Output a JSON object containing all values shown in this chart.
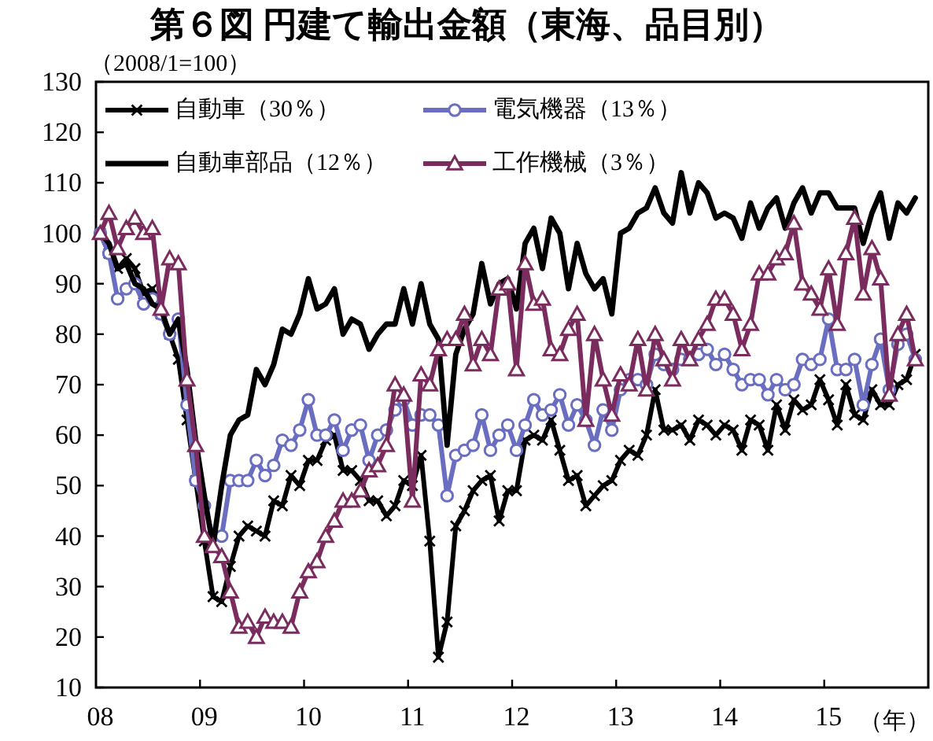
{
  "chart_data": {
    "type": "line",
    "title": "第６図 円建て輸出金額（東海、品目別）",
    "ylabel": "（2008/1=100）",
    "xlabel": "（年）",
    "categories": [
      "08",
      null,
      null,
      null,
      null,
      null,
      null,
      null,
      null,
      null,
      null,
      null,
      "09",
      null,
      null,
      null,
      null,
      null,
      null,
      null,
      null,
      null,
      null,
      null,
      "10",
      null,
      null,
      null,
      null,
      null,
      null,
      null,
      null,
      null,
      null,
      null,
      "11",
      null,
      null,
      null,
      null,
      null,
      null,
      null,
      null,
      null,
      null,
      null,
      "12",
      null,
      null,
      null,
      null,
      null,
      null,
      null,
      null,
      null,
      null,
      null,
      "13",
      null,
      null,
      null,
      null,
      null,
      null,
      null,
      null,
      null,
      null,
      null,
      "14",
      null,
      null,
      null,
      null,
      null,
      null,
      null,
      null,
      null,
      null,
      null,
      "15",
      null,
      null,
      null,
      null,
      null,
      null,
      null,
      null,
      null,
      null,
      null
    ],
    "series": [
      {
        "name": "自動車（30％）",
        "color": "#000000",
        "marker": "cross",
        "values": [
          100,
          96,
          93,
          95,
          93,
          88,
          89,
          84,
          80,
          75,
          63,
          51,
          39,
          28,
          27,
          34,
          40,
          42,
          41,
          40,
          47,
          46,
          52,
          50,
          55,
          55,
          59,
          60,
          53,
          53,
          51,
          47,
          47,
          44,
          46,
          51,
          50,
          56,
          39,
          16,
          23,
          42,
          45,
          49,
          51,
          52,
          43,
          49,
          49,
          59,
          60,
          59,
          63,
          57,
          51,
          52,
          46,
          48,
          50,
          51,
          55,
          57,
          56,
          60,
          69,
          61,
          61,
          62,
          59,
          63,
          62,
          60,
          62,
          61,
          57,
          63,
          62,
          57,
          66,
          61,
          67,
          65,
          66,
          71,
          67,
          62,
          70,
          64,
          63,
          69,
          66,
          66,
          70,
          71,
          76,
          null
        ]
      },
      {
        "name": "電気機器（13％）",
        "color": "#6a6ec0",
        "marker": "circle",
        "values": [
          100,
          96,
          87,
          89,
          90,
          86,
          87,
          84,
          80,
          83,
          66,
          51,
          46,
          40,
          40,
          51,
          51,
          51,
          55,
          52,
          54,
          59,
          58,
          61,
          67,
          60,
          60,
          63,
          57,
          61,
          62,
          55,
          60,
          61,
          65,
          67,
          62,
          64,
          64,
          62,
          48,
          56,
          57,
          58,
          64,
          57,
          60,
          62,
          57,
          62,
          67,
          64,
          65,
          68,
          62,
          66,
          63,
          58,
          65,
          61,
          69,
          71,
          71,
          70,
          76,
          74,
          73,
          75,
          75,
          76,
          77,
          74,
          76,
          73,
          70,
          71,
          71,
          68,
          71,
          69,
          70,
          75,
          74,
          75,
          83,
          73,
          73,
          75,
          66,
          74,
          79,
          69,
          78,
          80,
          75,
          null
        ]
      },
      {
        "name": "自動車部品（12％）",
        "color": "#000000",
        "marker": "none",
        "values": [
          100,
          98,
          93,
          94,
          90,
          89,
          86,
          85,
          80,
          83,
          73,
          59,
          48,
          38,
          50,
          60,
          63,
          64,
          73,
          70,
          74,
          81,
          80,
          84,
          91,
          85,
          86,
          89,
          80,
          83,
          82,
          77,
          80,
          82,
          82,
          89,
          82,
          90,
          82,
          79,
          58,
          76,
          81,
          84,
          94,
          86,
          90,
          91,
          85,
          98,
          101,
          93,
          103,
          100,
          89,
          98,
          92,
          89,
          91,
          84,
          100,
          101,
          104,
          105,
          109,
          104,
          102,
          112,
          104,
          110,
          108,
          103,
          104,
          103,
          99,
          106,
          101,
          105,
          107,
          101,
          106,
          109,
          104,
          108,
          108,
          105,
          105,
          105,
          98,
          104,
          108,
          99,
          106,
          104,
          107,
          null
        ]
      },
      {
        "name": "工作機械（3％）",
        "color": "#7a2c5e",
        "marker": "triangle",
        "values": [
          100,
          104,
          97,
          101,
          103,
          100,
          101,
          85,
          95,
          94,
          71,
          58,
          40,
          38,
          36,
          29,
          22,
          23,
          20,
          24,
          23,
          23,
          22,
          29,
          33,
          35,
          40,
          43,
          47,
          47,
          49,
          53,
          54,
          58,
          70,
          68,
          47,
          72,
          70,
          77,
          79,
          79,
          84,
          74,
          79,
          76,
          89,
          90,
          73,
          94,
          86,
          87,
          77,
          76,
          81,
          84,
          63,
          80,
          71,
          64,
          72,
          70,
          79,
          69,
          80,
          75,
          71,
          79,
          75,
          79,
          82,
          87,
          87,
          84,
          77,
          82,
          92,
          92,
          95,
          96,
          102,
          90,
          88,
          85,
          93,
          82,
          96,
          103,
          88,
          97,
          91,
          68,
          80,
          84,
          75,
          null
        ]
      }
    ],
    "ylim": [
      10,
      130
    ],
    "yticks": [
      10,
      20,
      30,
      40,
      50,
      60,
      70,
      80,
      90,
      100,
      110,
      120,
      130
    ],
    "legend": "top left",
    "line_style": "solid"
  }
}
